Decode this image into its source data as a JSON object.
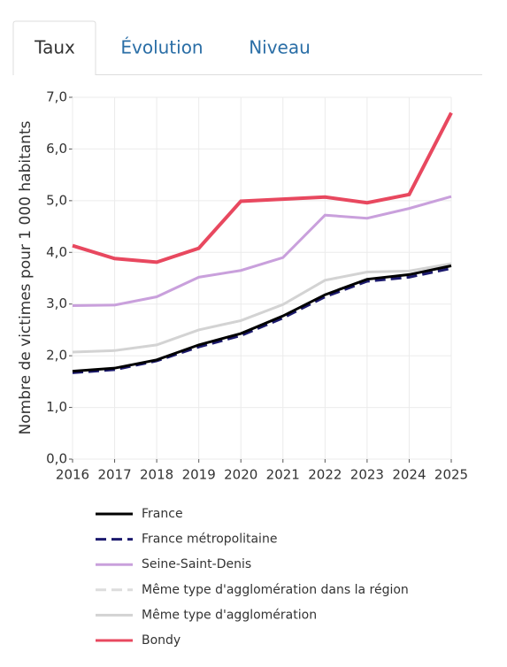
{
  "tabs": [
    "Taux",
    "Évolution",
    "Niveau"
  ],
  "chart_data": {
    "type": "line",
    "y_label": "Nombre de victimes pour 1 000 habitants",
    "x": [
      2016,
      2017,
      2018,
      2019,
      2020,
      2021,
      2022,
      2023,
      2024,
      2025
    ],
    "xlim": [
      2016,
      2025
    ],
    "xticks": [
      2016,
      2017,
      2018,
      2019,
      2020,
      2021,
      2022,
      2023,
      2024,
      2025
    ],
    "ylim": [
      0,
      7
    ],
    "yticks": [
      {
        "value": 0,
        "label": "0,0"
      },
      {
        "value": 1,
        "label": "1,0"
      },
      {
        "value": 2,
        "label": "2,0"
      },
      {
        "value": 3,
        "label": "3,0"
      },
      {
        "value": 4,
        "label": "4,0"
      },
      {
        "value": 5,
        "label": "5,0"
      },
      {
        "value": 6,
        "label": "6,0"
      },
      {
        "value": 7,
        "label": "7,0"
      }
    ],
    "grid": true,
    "legend": "bottom",
    "series": [
      {
        "name": "France",
        "color": "#000000",
        "dash": false,
        "values": [
          1.7,
          1.76,
          1.92,
          2.21,
          2.43,
          2.77,
          3.18,
          3.48,
          3.57,
          3.74
        ]
      },
      {
        "name": "France métropolitaine",
        "color": "#1c1a6e",
        "dash": true,
        "values": [
          1.67,
          1.73,
          1.9,
          2.17,
          2.39,
          2.73,
          3.14,
          3.44,
          3.52,
          3.69
        ]
      },
      {
        "name": "Seine-Saint-Denis",
        "color": "#c9a0dc",
        "dash": false,
        "values": [
          2.97,
          2.98,
          3.14,
          3.52,
          3.65,
          3.9,
          4.72,
          4.66,
          4.85,
          5.08
        ]
      },
      {
        "name": "Même type d'agglomération dans la région",
        "color": "#dddddd",
        "dash": true,
        "values": [
          null,
          null,
          null,
          null,
          null,
          null,
          null,
          null,
          null,
          null
        ]
      },
      {
        "name": "Même type d'agglomération",
        "color": "#d3d3d3",
        "dash": false,
        "values": [
          2.07,
          2.1,
          2.21,
          2.5,
          2.68,
          2.99,
          3.46,
          3.62,
          3.64,
          3.78
        ]
      },
      {
        "name": "Bondy",
        "color": "#e8485f",
        "dash": false,
        "values": [
          4.13,
          3.88,
          3.81,
          4.08,
          4.99,
          5.03,
          5.07,
          4.96,
          5.12,
          6.7
        ]
      }
    ]
  }
}
